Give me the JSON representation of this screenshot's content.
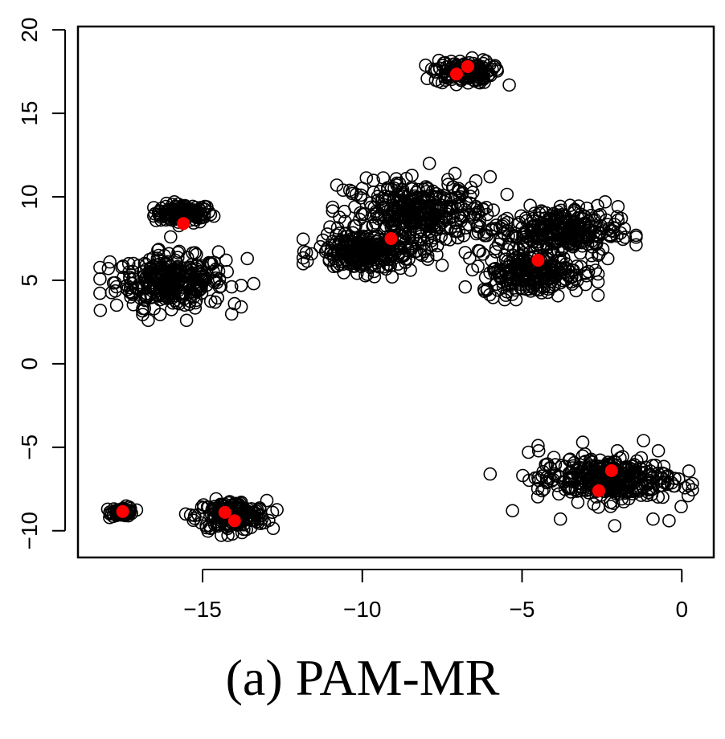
{
  "caption": "(a) PAM-MR",
  "chart_data": {
    "type": "scatter",
    "title": "",
    "xlabel": "",
    "ylabel": "",
    "xlim": [
      -18.9,
      1.0
    ],
    "ylim": [
      -11.6,
      20.2
    ],
    "xticks": [
      -15,
      -10,
      -5,
      0
    ],
    "yticks": [
      -10,
      -5,
      0,
      5,
      10,
      15,
      20
    ],
    "xtick_labels": [
      "−15",
      "−10",
      "−5",
      "0"
    ],
    "ytick_labels": [
      "−10",
      "−5",
      "0",
      "5",
      "10",
      "15",
      "20"
    ],
    "grid": false,
    "legend": "none",
    "point_color": "#000000",
    "medoid_color": "#ff0000",
    "clusters": [
      {
        "center": [
          -15.6,
          9.0
        ],
        "spread": [
          0.45,
          0.28
        ],
        "count": 120
      },
      {
        "center": [
          -16.0,
          4.9
        ],
        "spread": [
          0.85,
          0.75
        ],
        "count": 320
      },
      {
        "center": [
          -17.5,
          -8.85
        ],
        "spread": [
          0.18,
          0.14
        ],
        "count": 60
      },
      {
        "center": [
          -14.1,
          -9.1
        ],
        "spread": [
          0.55,
          0.45
        ],
        "count": 200
      },
      {
        "center": [
          -6.85,
          17.5
        ],
        "spread": [
          0.45,
          0.35
        ],
        "count": 140
      },
      {
        "center": [
          -8.2,
          9.0
        ],
        "spread": [
          1.05,
          0.95
        ],
        "count": 360
      },
      {
        "center": [
          -9.9,
          6.7
        ],
        "spread": [
          0.75,
          0.6
        ],
        "count": 260
      },
      {
        "center": [
          -3.9,
          7.9
        ],
        "spread": [
          0.95,
          0.75
        ],
        "count": 300
      },
      {
        "center": [
          -4.7,
          5.4
        ],
        "spread": [
          0.8,
          0.6
        ],
        "count": 240
      },
      {
        "center": [
          -2.4,
          -6.9
        ],
        "spread": [
          1.05,
          0.65
        ],
        "count": 330
      }
    ],
    "outliers": [
      [
        -18.2,
        3.2
      ],
      [
        -16.7,
        2.6
      ],
      [
        -15.5,
        2.6
      ],
      [
        -14.0,
        3.6
      ],
      [
        -13.6,
        6.3
      ],
      [
        -13.4,
        4.8
      ],
      [
        -17.9,
        6.1
      ],
      [
        -16.4,
        6.8
      ],
      [
        -14.5,
        6.7
      ],
      [
        -10.8,
        10.7
      ],
      [
        -10.6,
        10.4
      ],
      [
        -7.9,
        12.0
      ],
      [
        -7.1,
        11.4
      ],
      [
        -6.0,
        11.2
      ],
      [
        -7.5,
        5.9
      ],
      [
        -6.1,
        4.4
      ],
      [
        -5.4,
        16.7
      ],
      [
        -6.0,
        -6.6
      ],
      [
        -5.3,
        -8.8
      ],
      [
        -4.8,
        -5.3
      ],
      [
        -3.8,
        -9.3
      ],
      [
        -3.1,
        -4.7
      ],
      [
        -1.2,
        -4.6
      ],
      [
        -0.9,
        -9.3
      ],
      [
        -0.4,
        -9.4
      ],
      [
        0.2,
        -7.9
      ],
      [
        -2.1,
        -9.7
      ],
      [
        -0.1,
        -6.9
      ],
      [
        -4.5,
        -4.9
      ],
      [
        -16.0,
        7.6
      ],
      [
        -17.3,
        5.5
      ],
      [
        -2.4,
        9.7
      ],
      [
        -2.0,
        8.6
      ],
      [
        -1.8,
        8.1
      ],
      [
        -2.7,
        5.6
      ],
      [
        -5.9,
        9.2
      ]
    ],
    "medoids": [
      [
        -15.6,
        8.4
      ],
      [
        -17.5,
        -8.85
      ],
      [
        -14.3,
        -8.9
      ],
      [
        -14.0,
        -9.4
      ],
      [
        -7.05,
        17.35
      ],
      [
        -6.7,
        17.8
      ],
      [
        -9.1,
        7.5
      ],
      [
        -4.5,
        6.2
      ],
      [
        -2.2,
        -6.4
      ],
      [
        -2.6,
        -7.6
      ]
    ]
  }
}
